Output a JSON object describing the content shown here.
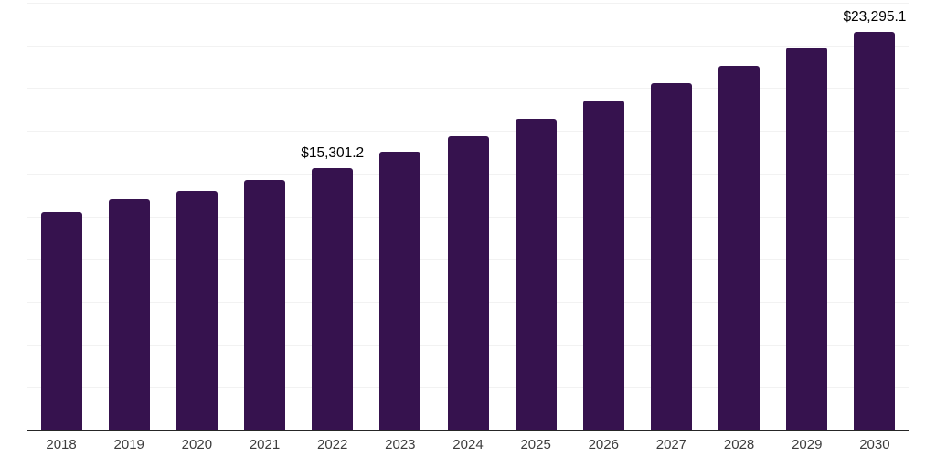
{
  "chart_data": {
    "type": "bar",
    "title": "",
    "categories": [
      "2018",
      "2019",
      "2020",
      "2021",
      "2022",
      "2023",
      "2024",
      "2025",
      "2026",
      "2027",
      "2028",
      "2029",
      "2030"
    ],
    "values": [
      12760,
      13480,
      13990,
      14590,
      15301.2,
      16280,
      17180,
      18210,
      19290,
      20310,
      21320,
      22390,
      23295.1
    ],
    "data_labels": [
      {
        "category": "2022",
        "text": "$15,301.2"
      },
      {
        "category": "2030",
        "text": "$23,295.1"
      }
    ],
    "ylim": [
      0,
      25000
    ],
    "gridline_step": 2500,
    "grid": true,
    "legend": "none",
    "y_axis_labels_visible": false,
    "colors": {
      "bar": "#36124e",
      "gridline": "#f2f2f2",
      "axis_line": "#262626",
      "tick_label": "#3d3d3d",
      "data_label": "#000000"
    }
  }
}
